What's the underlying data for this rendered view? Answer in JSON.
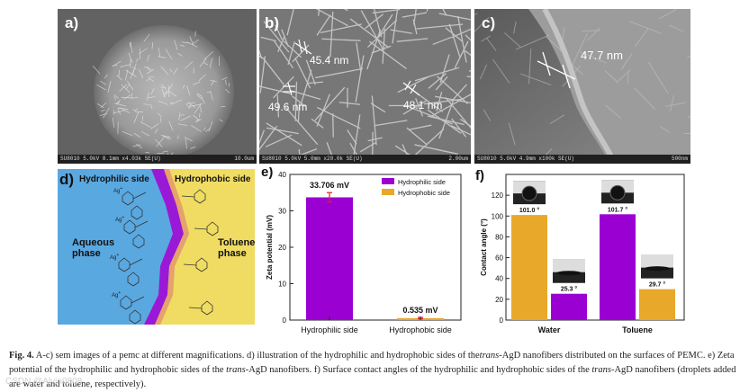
{
  "panels": {
    "a": {
      "label": "a)",
      "footer_left": "SU8010 5.0kV 8.1mm x4.03k SE(U)",
      "footer_right": "10.0um"
    },
    "b": {
      "label": "b)",
      "footer_left": "SU8010 5.0kV 5.0mm x20.0k SE(U)",
      "footer_right": "2.00um",
      "measurements": [
        "45.4 nm",
        "49.6 nm",
        "48.1 nm"
      ]
    },
    "c": {
      "label": "c)",
      "footer_left": "SU8010 5.0kV 4.9mm x100k SE(U)",
      "footer_right": "500nm",
      "measurements": [
        "47.7 nm"
      ]
    },
    "d": {
      "label": "d)",
      "hydrophilic": "Hydrophilic side",
      "hydrophobic": "Hydrophobic side",
      "aqueous": "Aqueous\nphase",
      "toluene": "Toluene\nphase",
      "ag": "Ag",
      "ag_sup": "+"
    },
    "e": {
      "label": "e)"
    },
    "f": {
      "label": "f)"
    }
  },
  "chart_data": [
    {
      "type": "bar",
      "categories": [
        "Hydrophilic side",
        "Hydrophobic side"
      ],
      "values": [
        33.706,
        0.535
      ],
      "errors": [
        1.3,
        0.2
      ],
      "data_labels": [
        "33.706 mV",
        "0.535 mV"
      ],
      "ylabel": "Zeta potential (mV)",
      "ylim": [
        0,
        40
      ],
      "yticks": [
        "0",
        "10",
        "20",
        "30",
        "40"
      ],
      "legend": [
        "Hydrophilic side",
        "Hydrophobic side"
      ],
      "legend_position": "top-right",
      "colors": {
        "hydrophilic": "#9b00d3",
        "hydrophobic": "#e8a82a",
        "error": "#e02020"
      }
    },
    {
      "type": "bar",
      "categories": [
        "Water",
        "Toluene"
      ],
      "series": [
        {
          "name": "Hydrophilic side",
          "values": [
            101.0,
            101.7
          ],
          "data_labels": [
            "101.0 °",
            "101.7 °"
          ]
        },
        {
          "name": "Hydrophobic side",
          "values": [
            25.3,
            29.7
          ],
          "data_labels": [
            "25.3 °",
            "29.7 °"
          ]
        }
      ],
      "ylabel": "Contact angle (°)",
      "ylim": [
        0,
        140
      ],
      "yticks": [
        "0",
        "20",
        "40",
        "60",
        "80",
        "100",
        "120"
      ],
      "colors": {
        "hydrophilic": "#9b00d3",
        "hydrophobic": "#e8a82a"
      }
    }
  ],
  "caption": {
    "fig": "Fig. 4.",
    "t1": " A-c) sem images of a pemc at different magnifications. d) illustration of the hydrophilic and hydrophobic sides of the",
    "t1i": "trans",
    "t2": "-AgD nanofibers distributed on the surfaces of PEMC. e) Zeta potential of the hydrophilic and hydrophobic sides of the ",
    "t2i": "trans",
    "t3": "-AgD nanofibers. f) Surface contact angles of the hydrophilic and hydrophobic sides of the ",
    "t3i": "trans",
    "t4": "-AgD nanofibers (droplets added are water and toluene, respectively)."
  },
  "watermark": "CSDN @Alvin0808"
}
